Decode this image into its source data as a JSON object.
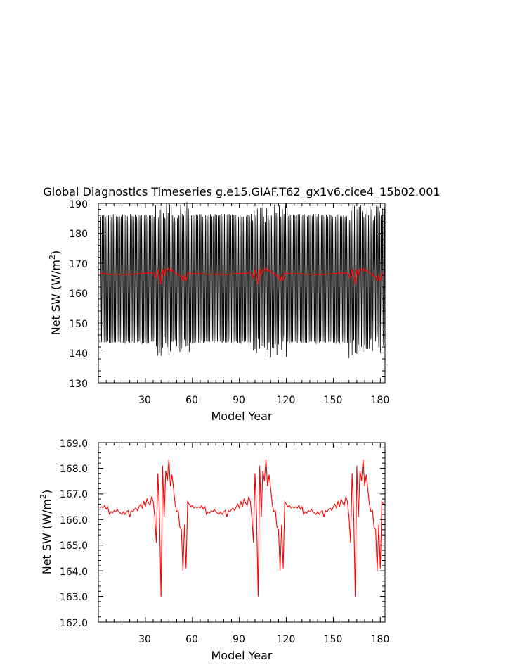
{
  "title": "Global Diagnostics Timeseries g.e15.GIAF.T62_gx1v6.cice4_15b02.001",
  "chart_data": [
    {
      "type": "line",
      "xlabel": "Model Year",
      "ylabel": "Net SW (W/m",
      "ylabel_sup": "2",
      "ylabel_close": ")",
      "xlim": [
        0,
        183
      ],
      "ylim": [
        130,
        190
      ],
      "xticks": [
        30,
        60,
        90,
        120,
        150,
        180
      ],
      "xtick_labels": [
        "30",
        "60",
        "90",
        "120",
        "150",
        "180"
      ],
      "yticks": [
        130,
        140,
        150,
        160,
        170,
        180,
        190
      ],
      "ytick_labels": [
        "130",
        "140",
        "150",
        "160",
        "170",
        "180",
        "190"
      ],
      "series": [
        {
          "color": "#000000",
          "style": "monthly",
          "envelope": {
            "max": 186,
            "min": 143.5,
            "mid": 164.7
          }
        },
        {
          "color": "#ff0000",
          "style": "annual",
          "values_ref": "annual_mean"
        }
      ]
    },
    {
      "type": "line",
      "xlabel": "Model Year",
      "ylabel": "Net SW (W/m",
      "ylabel_sup": "2",
      "ylabel_close": ")",
      "xlim": [
        0,
        183
      ],
      "ylim": [
        162,
        169
      ],
      "xticks": [
        30,
        60,
        90,
        120,
        150,
        180
      ],
      "xtick_labels": [
        "30",
        "60",
        "90",
        "120",
        "150",
        "180"
      ],
      "yticks": [
        162,
        163,
        164,
        165,
        166,
        167,
        168,
        169
      ],
      "ytick_labels": [
        "162.0",
        "163.0",
        "164.0",
        "165.0",
        "166.0",
        "167.0",
        "168.0",
        "169.0"
      ],
      "series": [
        {
          "color": "#ff0000",
          "values_ref": "annual_mean"
        }
      ]
    }
  ],
  "annual_mean": {
    "x_start": 1,
    "cycle": [
      166.45,
      166.5,
      166.45,
      166.55,
      166.4,
      166.5,
      166.2,
      166.3,
      166.25,
      166.35,
      166.3,
      166.4,
      166.3,
      166.25,
      166.2,
      166.3,
      166.2,
      166.3,
      166.35,
      166.1,
      166.35,
      166.3,
      166.4,
      166.45,
      166.35,
      166.5,
      166.6,
      166.45,
      166.7,
      166.5,
      166.8,
      166.65,
      166.55,
      166.9,
      166.7,
      166.1,
      165.1,
      167.8,
      166.2,
      163.0,
      168.1,
      166.1,
      167.9,
      167.5,
      168.35,
      167.3,
      167.75,
      167.2,
      166.6,
      166.3,
      166.35,
      165.7,
      165.6,
      164.0,
      165.8,
      164.1,
      166.7,
      166.6,
      166.5,
      166.55,
      166.45,
      166.5
    ],
    "cycles": 3,
    "length": 182
  }
}
